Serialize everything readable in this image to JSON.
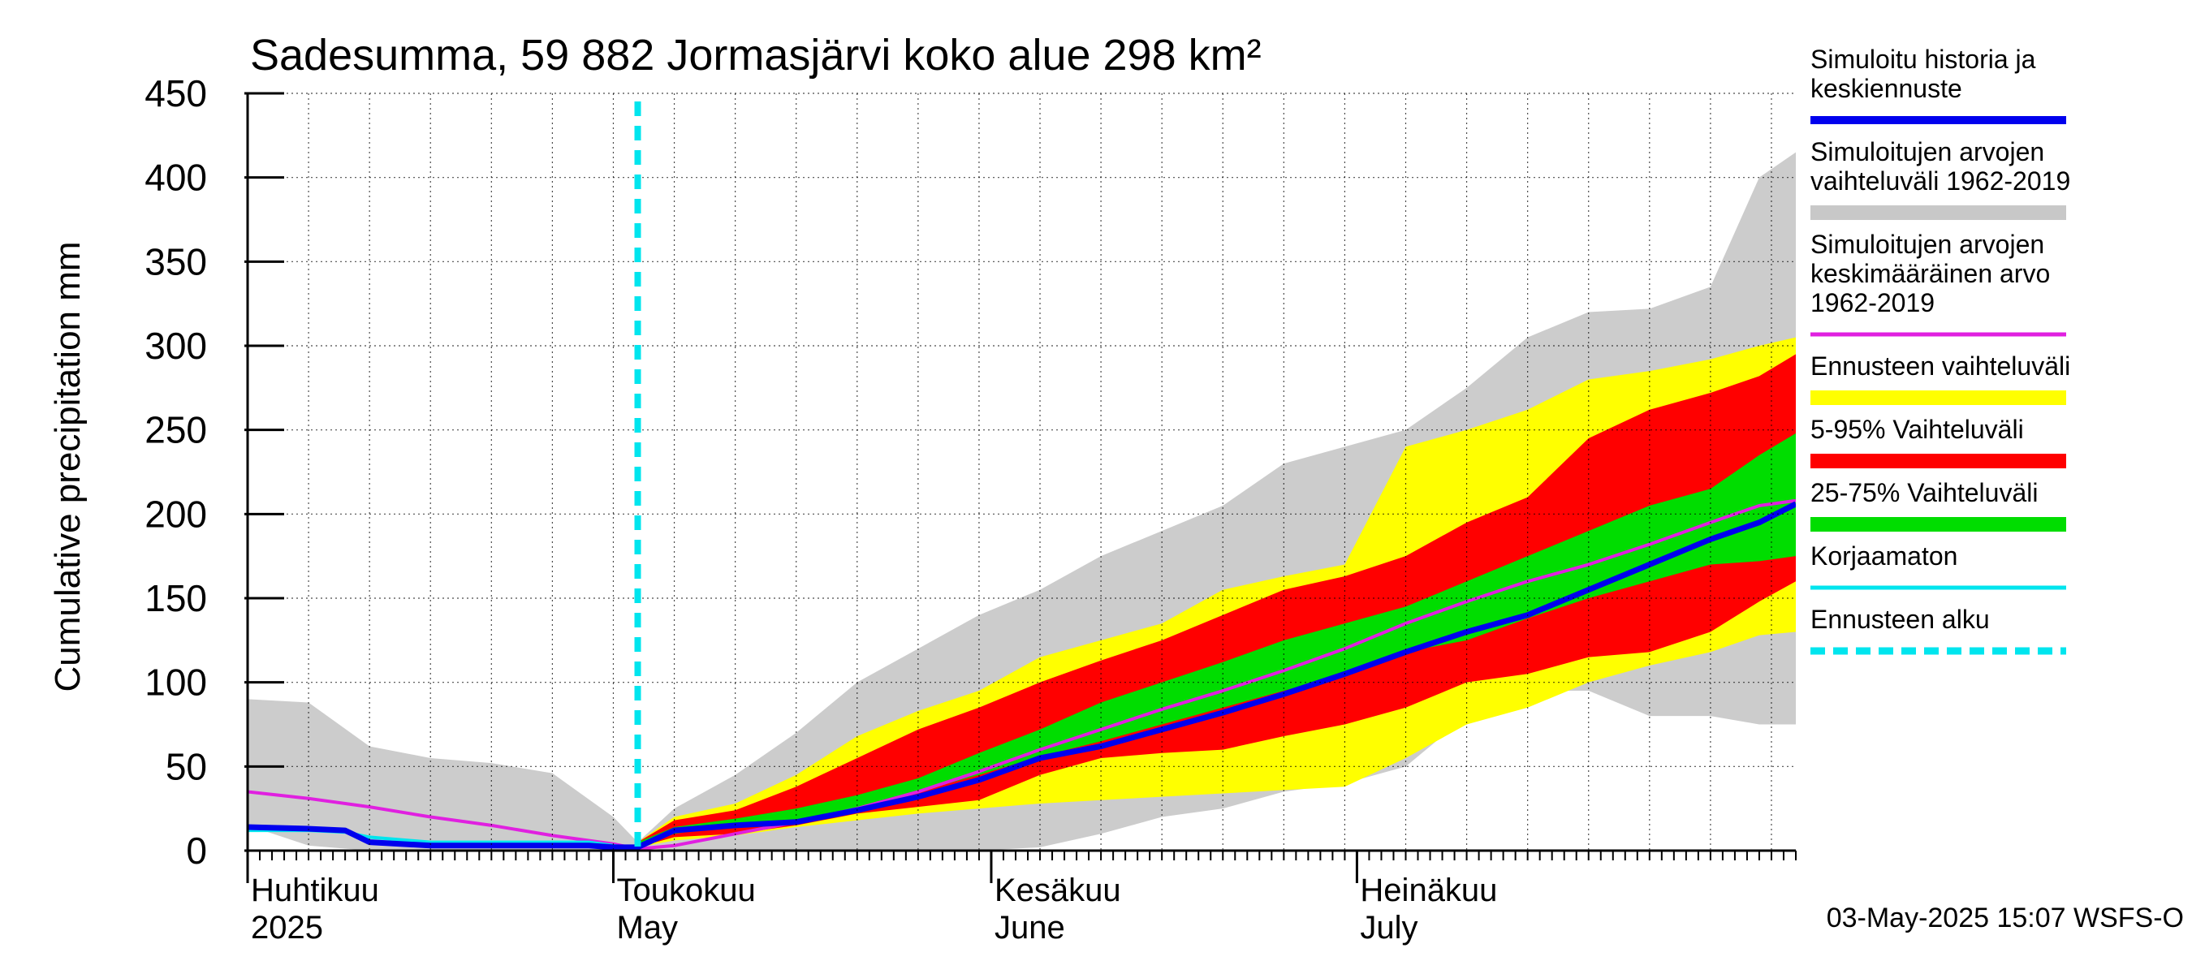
{
  "chart_data": {
    "type": "area",
    "title": "Sadesumma, 59 882 Jormasjärvi koko alue 298 km²",
    "ylabel": "Cumulative precipitation   mm",
    "ylim": [
      0,
      450
    ],
    "yticks": [
      0,
      50,
      100,
      150,
      200,
      250,
      300,
      350,
      400,
      450
    ],
    "xlim": [
      0,
      127
    ],
    "grid": true,
    "legend_position": "right",
    "month_labels": [
      {
        "x": 0,
        "fi": "Huhtikuu",
        "en": "2025"
      },
      {
        "x": 30,
        "fi": "Toukokuu",
        "en": "May"
      },
      {
        "x": 61,
        "fi": "Kesäkuu",
        "en": "June"
      },
      {
        "x": 91,
        "fi": "Heinäkuu",
        "en": "July"
      }
    ],
    "forecast_start_x": 32,
    "footer": "03-May-2025 15:07 WSFS-O",
    "legend": [
      {
        "label": "Simuloitu historia ja\nkeskiennuste",
        "color": "#0000ee",
        "style": "line-thick"
      },
      {
        "label": "Simuloitujen arvojen\nvaihteluväli 1962-2019",
        "color": "#c8c8c8",
        "style": "band"
      },
      {
        "label": "Simuloitujen arvojen\nkeskimääräinen arvo\n   1962-2019",
        "color": "#e020e0",
        "style": "line"
      },
      {
        "label": "Ennusteen vaihteluväli",
        "color": "#ffff00",
        "style": "band"
      },
      {
        "label": "5-95% Vaihteluväli",
        "color": "#ff0000",
        "style": "band"
      },
      {
        "label": "25-75% Vaihteluväli",
        "color": "#00dd00",
        "style": "band"
      },
      {
        "label": "Korjaamaton",
        "color": "#00e5ee",
        "style": "line"
      },
      {
        "label": "Ennusteen alku",
        "color": "#00e5ee",
        "style": "dashed"
      }
    ],
    "series": [
      {
        "kind": "band",
        "color": "#cccccc",
        "x": [
          0,
          5,
          10,
          15,
          20,
          25,
          30,
          32,
          35,
          40,
          45,
          50,
          55,
          60,
          65,
          70,
          75,
          80,
          85,
          90,
          95,
          100,
          105,
          110,
          115,
          120,
          124,
          127
        ],
        "upper": [
          90,
          88,
          62,
          55,
          52,
          46,
          20,
          5,
          25,
          45,
          70,
          100,
          120,
          140,
          155,
          175,
          190,
          205,
          230,
          240,
          250,
          275,
          305,
          320,
          322,
          335,
          400,
          415
        ],
        "lower": [
          15,
          3,
          0,
          0,
          0,
          0,
          0,
          2,
          0,
          0,
          0,
          0,
          0,
          0,
          2,
          10,
          20,
          25,
          35,
          40,
          50,
          80,
          95,
          95,
          80,
          80,
          75,
          75
        ]
      },
      {
        "kind": "band",
        "color": "#ffff00",
        "x": [
          32,
          35,
          40,
          45,
          50,
          55,
          60,
          65,
          70,
          75,
          80,
          85,
          90,
          95,
          100,
          105,
          110,
          115,
          120,
          124,
          127
        ],
        "upper": [
          5,
          20,
          28,
          45,
          68,
          83,
          95,
          115,
          125,
          135,
          155,
          163,
          170,
          240,
          250,
          262,
          280,
          285,
          292,
          300,
          305
        ],
        "lower": [
          2,
          6,
          9,
          14,
          18,
          22,
          25,
          28,
          30,
          32,
          34,
          36,
          38,
          55,
          75,
          85,
          100,
          110,
          118,
          128,
          130
        ]
      },
      {
        "kind": "band",
        "color": "#ff0000",
        "x": [
          32,
          35,
          40,
          45,
          50,
          55,
          60,
          65,
          70,
          75,
          80,
          85,
          90,
          95,
          100,
          105,
          110,
          115,
          120,
          124,
          127
        ],
        "upper": [
          5,
          18,
          24,
          38,
          55,
          72,
          85,
          100,
          113,
          125,
          140,
          155,
          163,
          175,
          195,
          210,
          245,
          262,
          272,
          282,
          295
        ],
        "lower": [
          2,
          8,
          10,
          15,
          22,
          26,
          30,
          45,
          55,
          58,
          60,
          68,
          75,
          85,
          100,
          105,
          115,
          118,
          130,
          148,
          160
        ]
      },
      {
        "kind": "band",
        "color": "#00dd00",
        "x": [
          32,
          35,
          40,
          45,
          50,
          55,
          60,
          65,
          70,
          75,
          80,
          85,
          90,
          95,
          100,
          105,
          110,
          115,
          120,
          124,
          127
        ],
        "upper": [
          5,
          14,
          19,
          25,
          33,
          43,
          58,
          72,
          88,
          100,
          112,
          125,
          135,
          145,
          160,
          175,
          190,
          205,
          215,
          235,
          248
        ],
        "lower": [
          2,
          10,
          15,
          18,
          25,
          35,
          45,
          56,
          65,
          75,
          85,
          95,
          105,
          118,
          125,
          138,
          150,
          160,
          170,
          172,
          175
        ]
      },
      {
        "kind": "line",
        "color": "#e020e0",
        "width": 4,
        "x": [
          0,
          5,
          10,
          15,
          20,
          25,
          30,
          32,
          35,
          40,
          45,
          50,
          55,
          60,
          65,
          70,
          75,
          80,
          85,
          90,
          95,
          100,
          105,
          110,
          115,
          120,
          124,
          127
        ],
        "y": [
          35,
          31,
          26,
          20,
          15,
          9,
          4,
          1,
          3,
          10,
          17,
          25,
          35,
          47,
          60,
          72,
          84,
          95,
          107,
          120,
          135,
          148,
          160,
          170,
          182,
          195,
          205,
          208
        ]
      },
      {
        "kind": "line",
        "color": "#00e5ee",
        "width": 4,
        "x": [
          0,
          5,
          8,
          10,
          15,
          20,
          25,
          28,
          30,
          31
        ],
        "y": [
          12,
          12,
          11,
          8,
          5,
          5,
          5,
          5,
          3,
          2
        ]
      },
      {
        "kind": "line",
        "color": "#0000ee",
        "width": 7,
        "x": [
          0,
          5,
          8,
          10,
          15,
          20,
          25,
          28,
          30,
          32,
          35,
          40,
          45,
          50,
          55,
          60,
          65,
          70,
          75,
          80,
          85,
          90,
          95,
          100,
          105,
          110,
          115,
          120,
          124,
          127
        ],
        "y": [
          14,
          13,
          12,
          5,
          3,
          3,
          3,
          3,
          2,
          2,
          12,
          15,
          17,
          24,
          32,
          42,
          55,
          62,
          72,
          82,
          93,
          105,
          118,
          130,
          140,
          155,
          170,
          185,
          195,
          206
        ]
      }
    ]
  }
}
